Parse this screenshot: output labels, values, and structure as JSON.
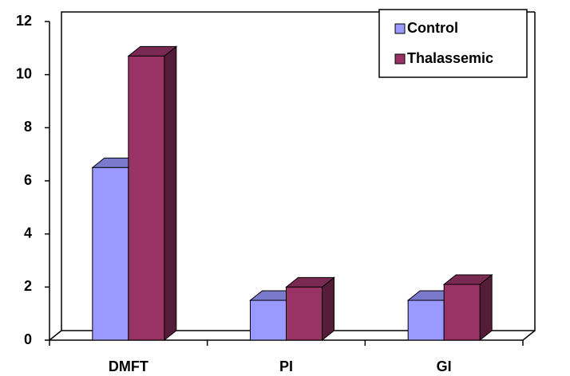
{
  "chart_data": {
    "type": "bar3d",
    "categories": [
      "DMFT",
      "PI",
      "GI"
    ],
    "series": [
      {
        "name": "Control",
        "color": "#9999ff",
        "values": [
          6.5,
          1.5,
          1.5
        ]
      },
      {
        "name": "Thalassemic",
        "color": "#993366",
        "values": [
          10.7,
          2.0,
          2.1
        ]
      }
    ],
    "ylim": [
      0,
      12
    ],
    "yticks": [
      0,
      2,
      4,
      6,
      8,
      10,
      12
    ],
    "legend": "top-right"
  }
}
